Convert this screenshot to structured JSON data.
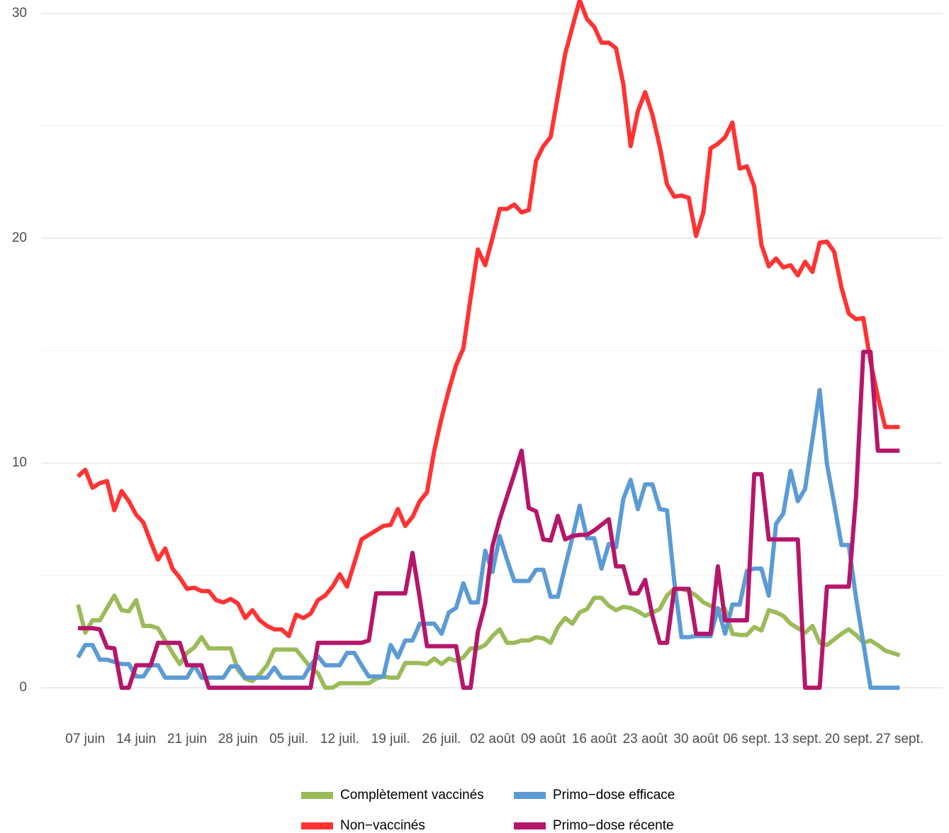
{
  "chart_data": {
    "type": "line",
    "categories": [
      null,
      "07 juin",
      null,
      null,
      null,
      null,
      null,
      null,
      "14 juin",
      null,
      null,
      null,
      null,
      null,
      null,
      "21 juin",
      null,
      null,
      null,
      null,
      null,
      null,
      "28 juin",
      null,
      null,
      null,
      null,
      null,
      null,
      "05 juil.",
      null,
      null,
      null,
      null,
      null,
      null,
      "12 juil.",
      null,
      null,
      null,
      null,
      null,
      null,
      "19 juil.",
      null,
      null,
      null,
      null,
      null,
      null,
      "26 juil.",
      null,
      null,
      null,
      null,
      null,
      null,
      "02 août",
      null,
      null,
      null,
      null,
      null,
      null,
      "09 août",
      null,
      null,
      null,
      null,
      null,
      null,
      "16 août",
      null,
      null,
      null,
      null,
      null,
      null,
      "23 août",
      null,
      null,
      null,
      null,
      null,
      null,
      "30 août",
      null,
      null,
      null,
      null,
      null,
      null,
      "06 sept.",
      null,
      null,
      null,
      null,
      null,
      null,
      "13 sept.",
      null,
      null,
      null,
      null,
      null,
      null,
      "20 sept.",
      null,
      null,
      null,
      null,
      null,
      null,
      "27 sept."
    ],
    "series": [
      {
        "name": "Complètement vaccinés",
        "color": "#9bbb59",
        "values": [
          3.7,
          2.45,
          3.0,
          3.0,
          3.55,
          4.1,
          3.45,
          3.4,
          3.9,
          2.75,
          2.75,
          2.65,
          2.1,
          1.55,
          1.05,
          1.55,
          1.8,
          2.25,
          1.75,
          1.75,
          1.75,
          1.75,
          0.8,
          0.4,
          0.3,
          0.6,
          1.0,
          1.7,
          1.7,
          1.7,
          1.7,
          1.3,
          0.9,
          0.65,
          0,
          0,
          0.2,
          0.2,
          0.2,
          0.2,
          0.2,
          0.4,
          0.5,
          0.45,
          0.45,
          1.1,
          1.1,
          1.1,
          1.05,
          1.3,
          1.05,
          1.3,
          1.2,
          1.35,
          1.75,
          1.75,
          1.9,
          2.3,
          2.6,
          2.0,
          2.0,
          2.1,
          2.1,
          2.25,
          2.2,
          2.0,
          2.7,
          3.1,
          2.85,
          3.35,
          3.5,
          4.0,
          4.0,
          3.65,
          3.45,
          3.6,
          3.55,
          3.4,
          3.2,
          3.35,
          3.5,
          4.1,
          4.4,
          4.4,
          4.3,
          4.1,
          3.8,
          3.65,
          3.45,
          3.5,
          2.4,
          2.35,
          2.35,
          2.7,
          2.55,
          3.45,
          3.35,
          3.2,
          2.85,
          2.65,
          2.45,
          2.75,
          2.0,
          1.9,
          2.15,
          2.4,
          2.6,
          2.35,
          2.0,
          2.1,
          1.9,
          1.65,
          1.55,
          1.45
        ]
      },
      {
        "name": "Non−vaccinés",
        "color": "#ff3333",
        "values": [
          9.4,
          9.7,
          8.9,
          9.1,
          9.2,
          7.9,
          8.75,
          8.3,
          7.7,
          7.35,
          6.5,
          5.7,
          6.2,
          5.3,
          4.9,
          4.4,
          4.45,
          4.3,
          4.3,
          3.9,
          3.8,
          3.95,
          3.75,
          3.1,
          3.45,
          3.0,
          2.75,
          2.6,
          2.6,
          2.3,
          3.25,
          3.1,
          3.3,
          3.9,
          4.1,
          4.5,
          5.05,
          4.5,
          5.55,
          6.6,
          6.8,
          7.0,
          7.2,
          7.25,
          7.95,
          7.2,
          7.6,
          8.3,
          8.7,
          10.55,
          12.0,
          13.25,
          14.35,
          15.1,
          17.35,
          19.5,
          18.8,
          20.0,
          21.3,
          21.3,
          21.5,
          21.15,
          21.25,
          23.45,
          24.1,
          24.5,
          26.35,
          28.2,
          29.4,
          30.6,
          29.75,
          29.4,
          28.7,
          28.7,
          28.45,
          26.85,
          24.1,
          25.65,
          26.5,
          25.5,
          24.1,
          22.4,
          21.85,
          21.9,
          21.8,
          20.1,
          21.15,
          24.0,
          24.2,
          24.5,
          25.15,
          23.1,
          23.2,
          22.3,
          19.7,
          18.75,
          19.1,
          18.7,
          18.8,
          18.35,
          18.95,
          18.5,
          19.8,
          19.85,
          19.4,
          17.8,
          16.65,
          16.4,
          16.45,
          14.5,
          12.95,
          11.6,
          11.6,
          11.6
        ]
      },
      {
        "name": "Primo−dose efficace",
        "color": "#5b9bd5",
        "values": [
          1.35,
          1.9,
          1.9,
          1.25,
          1.25,
          1.15,
          1.05,
          1.05,
          0.5,
          0.5,
          1.0,
          1.0,
          0.45,
          0.45,
          0.45,
          0.45,
          1.0,
          0.45,
          0.45,
          0.45,
          0.45,
          0.95,
          0.95,
          0.45,
          0.45,
          0.45,
          0.45,
          0.9,
          0.45,
          0.45,
          0.45,
          0.45,
          1.0,
          1.4,
          1.0,
          1.0,
          1.0,
          1.55,
          1.55,
          1.0,
          0.5,
          0.5,
          0.5,
          1.9,
          1.35,
          2.1,
          2.1,
          2.85,
          2.85,
          2.85,
          2.4,
          3.35,
          3.55,
          4.65,
          3.8,
          3.8,
          6.1,
          5.15,
          6.75,
          5.7,
          4.75,
          4.75,
          4.75,
          5.25,
          5.25,
          4.05,
          4.05,
          5.4,
          6.7,
          8.1,
          6.65,
          6.65,
          5.3,
          6.4,
          6.25,
          8.4,
          9.25,
          7.95,
          9.05,
          9.05,
          7.95,
          7.9,
          4.75,
          2.25,
          2.25,
          2.3,
          2.3,
          2.3,
          3.55,
          2.4,
          3.7,
          3.7,
          5.2,
          5.3,
          5.3,
          4.1,
          7.3,
          7.75,
          9.65,
          8.3,
          8.85,
          11.05,
          13.25,
          9.95,
          8.2,
          6.35,
          6.35,
          4.0,
          2.0,
          0,
          0,
          0,
          0,
          0
        ]
      },
      {
        "name": "Primo−dose récente",
        "color": "#b5166b",
        "values": [
          2.65,
          2.65,
          2.65,
          2.6,
          1.8,
          1.75,
          0,
          0,
          1.0,
          1.0,
          1.0,
          2.0,
          2.0,
          2.0,
          2.0,
          1.0,
          1.0,
          1.0,
          0,
          0,
          0,
          0,
          0,
          0,
          0,
          0,
          0,
          0,
          0,
          0,
          0,
          0,
          0,
          2.0,
          2.0,
          2.0,
          2.0,
          2.0,
          2.0,
          2.0,
          2.1,
          4.2,
          4.2,
          4.2,
          4.2,
          4.2,
          6.0,
          4.0,
          1.85,
          1.85,
          1.85,
          1.85,
          1.85,
          0,
          0,
          2.5,
          3.75,
          6.3,
          7.5,
          8.5,
          9.5,
          10.55,
          8.0,
          7.85,
          6.6,
          6.55,
          7.65,
          6.6,
          6.75,
          6.8,
          6.8,
          7.0,
          7.25,
          7.5,
          5.4,
          5.4,
          4.2,
          4.2,
          4.8,
          3.2,
          2.0,
          2.0,
          4.4,
          4.4,
          4.4,
          2.4,
          2.4,
          2.4,
          5.4,
          3.0,
          3.0,
          3.0,
          3.0,
          9.5,
          9.5,
          6.6,
          6.6,
          6.6,
          6.6,
          6.6,
          0,
          0,
          0,
          4.5,
          4.5,
          4.5,
          4.5,
          8.5,
          14.95,
          14.95,
          10.55,
          10.55,
          10.55,
          10.55
        ]
      }
    ],
    "ylim": [
      -1.1,
      30.6
    ],
    "yticks": [
      0,
      10,
      20,
      30
    ],
    "y_minor_ticks": [
      5,
      15,
      25
    ],
    "grid": true,
    "legend": "bottom"
  }
}
